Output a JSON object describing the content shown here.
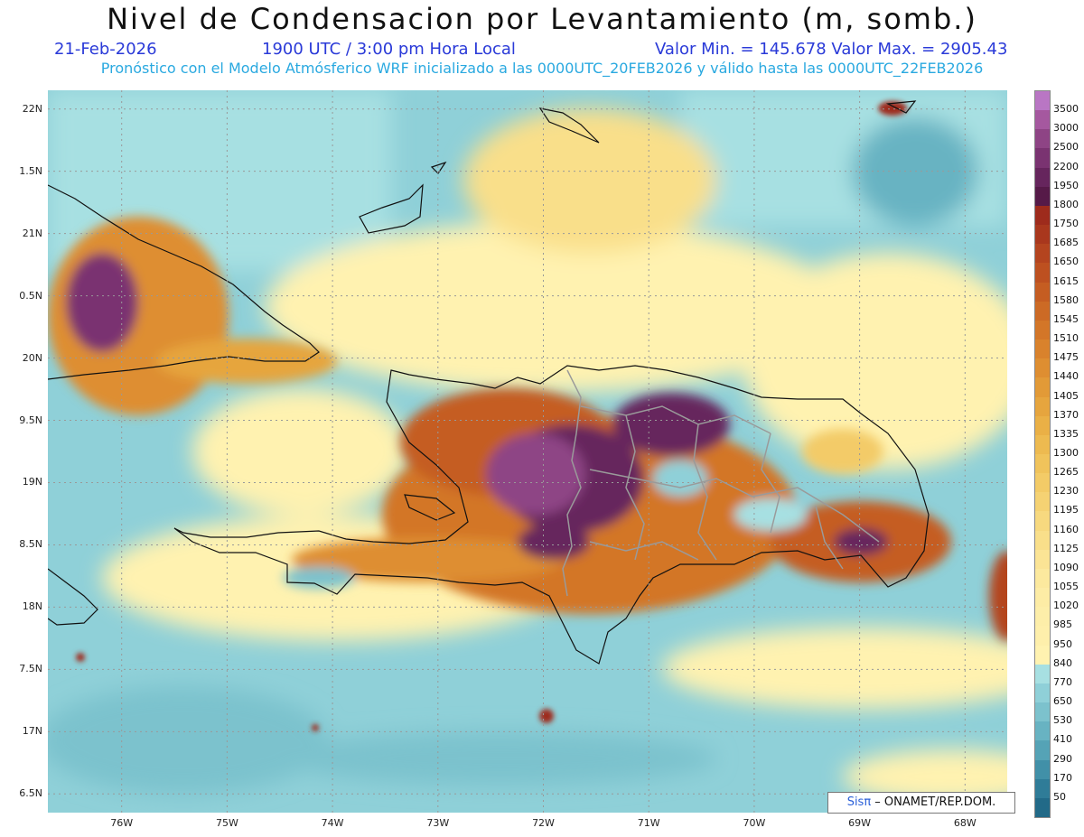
{
  "title": "Nivel de Condensacion por Levantamiento (m, somb.)",
  "date": "21-Feb-2026",
  "time": "1900 UTC / 3:00 pm Hora Local",
  "minmax": "Valor Min. = 145.678  Valor Max. = 2905.43",
  "forecast": "Pronóstico con el Modelo Atmósferico WRF inicializado a las 0000UTC_20FEB2026 y válido hasta las  0000UTC_22FEB2026",
  "credit": {
    "sis": "Sisπ",
    "org": " – ONAMET/REP.DOM."
  },
  "map": {
    "lon_range": [
      -76.7,
      -67.6
    ],
    "lat_range": [
      16.35,
      22.15
    ],
    "lat_labels": [
      {
        "lat": 22,
        "text": "22N"
      },
      {
        "lat": 21.5,
        "text": "1.5N"
      },
      {
        "lat": 21,
        "text": "21N"
      },
      {
        "lat": 20.5,
        "text": "0.5N"
      },
      {
        "lat": 20,
        "text": "20N"
      },
      {
        "lat": 19.5,
        "text": "9.5N"
      },
      {
        "lat": 19,
        "text": "19N"
      },
      {
        "lat": 18.5,
        "text": "8.5N"
      },
      {
        "lat": 18,
        "text": "18N"
      },
      {
        "lat": 17.5,
        "text": "7.5N"
      },
      {
        "lat": 17,
        "text": "17N"
      },
      {
        "lat": 16.5,
        "text": "6.5N"
      }
    ],
    "lon_labels": [
      {
        "lon": -76,
        "text": "76W"
      },
      {
        "lon": -75,
        "text": "75W"
      },
      {
        "lon": -74,
        "text": "74W"
      },
      {
        "lon": -73,
        "text": "73W"
      },
      {
        "lon": -72,
        "text": "72W"
      },
      {
        "lon": -71,
        "text": "71W"
      },
      {
        "lon": -70,
        "text": "70W"
      },
      {
        "lon": -69,
        "text": "69W"
      },
      {
        "lon": -68,
        "text": "68W"
      }
    ]
  },
  "colorbar": [
    {
      "label": "3500",
      "color": "#b976c4"
    },
    {
      "label": "3000",
      "color": "#a5589f"
    },
    {
      "label": "2500",
      "color": "#8e4485"
    },
    {
      "label": "2200",
      "color": "#7a3371"
    },
    {
      "label": "1950",
      "color": "#66255d"
    },
    {
      "label": "1800",
      "color": "#561a48"
    },
    {
      "label": "1750",
      "color": "#9e2b1c"
    },
    {
      "label": "1685",
      "color": "#a9371d"
    },
    {
      "label": "1650",
      "color": "#b4441f"
    },
    {
      "label": "1615",
      "color": "#bd5020"
    },
    {
      "label": "1580",
      "color": "#c55d22"
    },
    {
      "label": "1545",
      "color": "#cc6a25"
    },
    {
      "label": "1510",
      "color": "#d37628"
    },
    {
      "label": "1475",
      "color": "#d9822c"
    },
    {
      "label": "1440",
      "color": "#de8e31"
    },
    {
      "label": "1405",
      "color": "#e29a37"
    },
    {
      "label": "1370",
      "color": "#e6a53e"
    },
    {
      "label": "1335",
      "color": "#eab046"
    },
    {
      "label": "1300",
      "color": "#edba50"
    },
    {
      "label": "1265",
      "color": "#f0c35b"
    },
    {
      "label": "1230",
      "color": "#f3cb67"
    },
    {
      "label": "1195",
      "color": "#f5d273"
    },
    {
      "label": "1160",
      "color": "#f7d97f"
    },
    {
      "label": "1125",
      "color": "#f9df8a"
    },
    {
      "label": "1090",
      "color": "#fbe495"
    },
    {
      "label": "1055",
      "color": "#fce99e"
    },
    {
      "label": "1020",
      "color": "#fdeca5"
    },
    {
      "label": "985",
      "color": "#fdeea9"
    },
    {
      "label": "950",
      "color": "#feefab"
    },
    {
      "label": "840",
      "color": "#fff2b0"
    },
    {
      "label": "770",
      "color": "#a7e0e2"
    },
    {
      "label": "650",
      "color": "#8fd0d8"
    },
    {
      "label": "530",
      "color": "#7cc2cd"
    },
    {
      "label": "410",
      "color": "#68b3c2"
    },
    {
      "label": "290",
      "color": "#55a3b6"
    },
    {
      "label": "170",
      "color": "#4190a8"
    },
    {
      "label": "50",
      "color": "#2f7c98"
    },
    {
      "label": "",
      "color": "#226a88"
    }
  ]
}
